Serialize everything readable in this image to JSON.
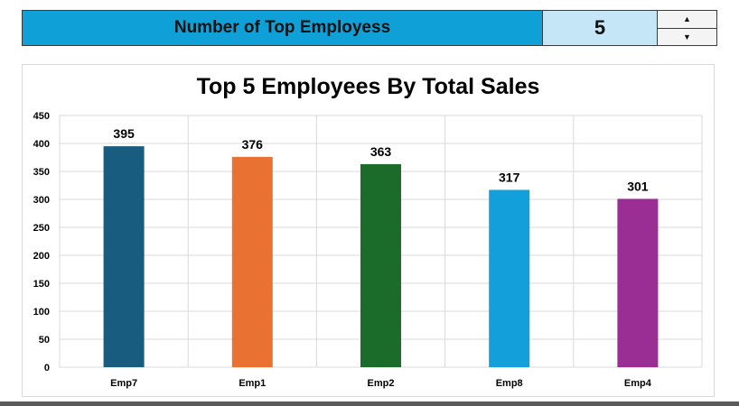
{
  "control": {
    "label": "Number of Top Employess",
    "value": "5",
    "up_icon": "triangle-up-icon",
    "down_icon": "triangle-down-icon",
    "label_color": "#10A0D8",
    "value_color": "#C5E6F7"
  },
  "chart_data": {
    "type": "bar",
    "title": "Top 5 Employees By Total Sales",
    "categories": [
      "Emp7",
      "Emp1",
      "Emp2",
      "Emp8",
      "Emp4"
    ],
    "values": [
      395,
      376,
      363,
      317,
      301
    ],
    "colors": [
      "#185D80",
      "#E97232",
      "#1B6B2A",
      "#139FDA",
      "#9B2E94"
    ],
    "ylim": [
      0,
      450
    ],
    "yticks": [
      "0",
      "50",
      "100",
      "150",
      "200",
      "250",
      "300",
      "350",
      "400",
      "450"
    ],
    "xlabel": "",
    "ylabel": "",
    "grid": true,
    "data_labels": true
  }
}
